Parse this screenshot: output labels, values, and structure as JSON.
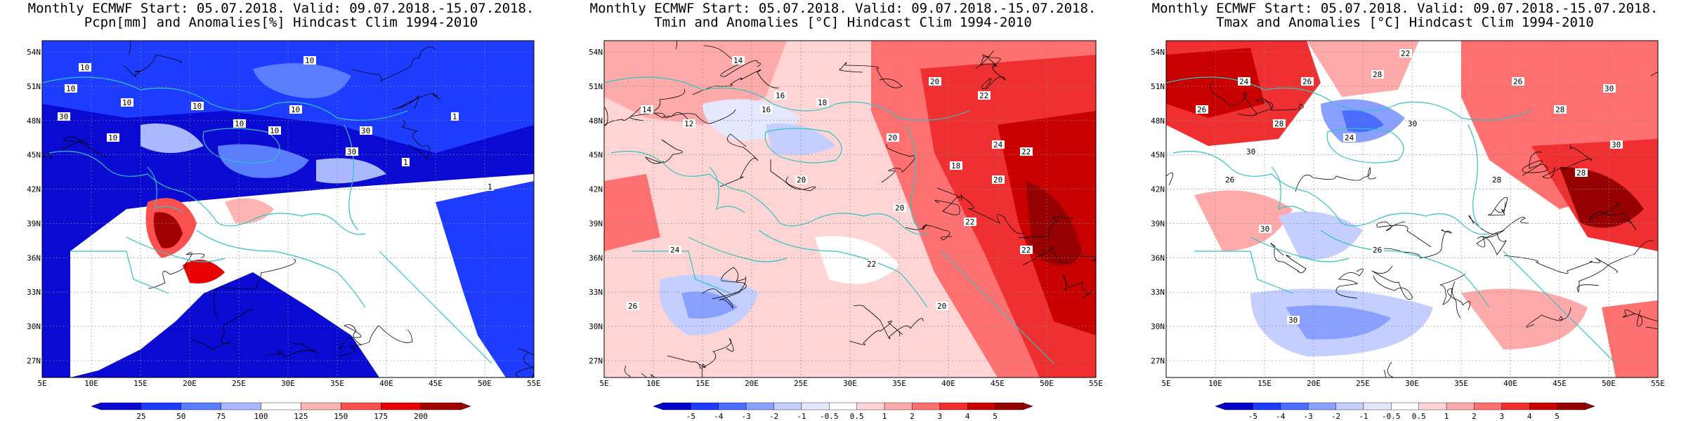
{
  "panels": [
    {
      "title_line1": "Monthly ECMWF Start: 05.07.2018. Valid: 09.07.2018.-15.07.2018.",
      "title_line2": "Pcpn[mm] and Anomalies[%] Hindcast Clim 1994-2010",
      "colorbar_ticks": [
        "25",
        "50",
        "75",
        "100",
        "125",
        "150",
        "175",
        "200"
      ],
      "contour_labels": [
        "10",
        "10",
        "10",
        "10",
        "10",
        "30",
        "10",
        "10",
        "10",
        "10",
        "30",
        "1",
        "1",
        "1",
        "30"
      ]
    },
    {
      "title_line1": "Monthly ECMWF Start: 05.07.2018. Valid: 09.07.2018.-15.07.2018.",
      "title_line2": "Tmin and Anomalies [°C] Hindcast Clim 1994-2010",
      "colorbar_ticks": [
        "-5",
        "-4",
        "-3",
        "-2",
        "-1",
        "-0.5",
        "0.5",
        "1",
        "2",
        "3",
        "4",
        "5"
      ],
      "contour_labels": [
        "14",
        "14",
        "16",
        "18",
        "20",
        "22",
        "24",
        "16",
        "12",
        "20",
        "20",
        "22",
        "18",
        "20",
        "24",
        "22",
        "20",
        "22",
        "26",
        "20",
        "22"
      ]
    },
    {
      "title_line1": "Monthly ECMWF Start: 05.07.2018. Valid: 09.07.2018.-15.07.2018.",
      "title_line2": "Tmax and Anomalies [°C] Hindcast Clim 1994-2010",
      "colorbar_ticks": [
        "-5",
        "-4",
        "-3",
        "-2",
        "-1",
        "-0.5",
        "0.5",
        "1",
        "2",
        "3",
        "4",
        "5"
      ],
      "contour_labels": [
        "22",
        "24",
        "26",
        "28",
        "30",
        "26",
        "28",
        "30",
        "24",
        "26",
        "28",
        "30",
        "26",
        "28",
        "30",
        "28",
        "30",
        "26",
        "30"
      ]
    }
  ],
  "map_axes": {
    "lat_labels": [
      "54N",
      "51N",
      "48N",
      "45N",
      "42N",
      "39N",
      "36N",
      "33N",
      "30N",
      "27N"
    ],
    "lon_labels": [
      "5E",
      "10E",
      "15E",
      "20E",
      "25E",
      "30E",
      "35E",
      "40E",
      "45E",
      "50E",
      "55E"
    ]
  },
  "colors": {
    "pcpn_scale": [
      "#0a0ad2",
      "#1e3cff",
      "#5a7dff",
      "#aab9ff",
      "#ffffff",
      "#ffb4b4",
      "#ff5050",
      "#e60000",
      "#a00000"
    ],
    "temp_scale": [
      "#0000c8",
      "#1e3cff",
      "#4a6cff",
      "#8aa0ff",
      "#c4ceff",
      "#e4e8ff",
      "#ffffff",
      "#ffd4d4",
      "#ffaaaa",
      "#ff7070",
      "#f03030",
      "#c80000",
      "#960000"
    ],
    "coastline": "#2ec4c4"
  }
}
